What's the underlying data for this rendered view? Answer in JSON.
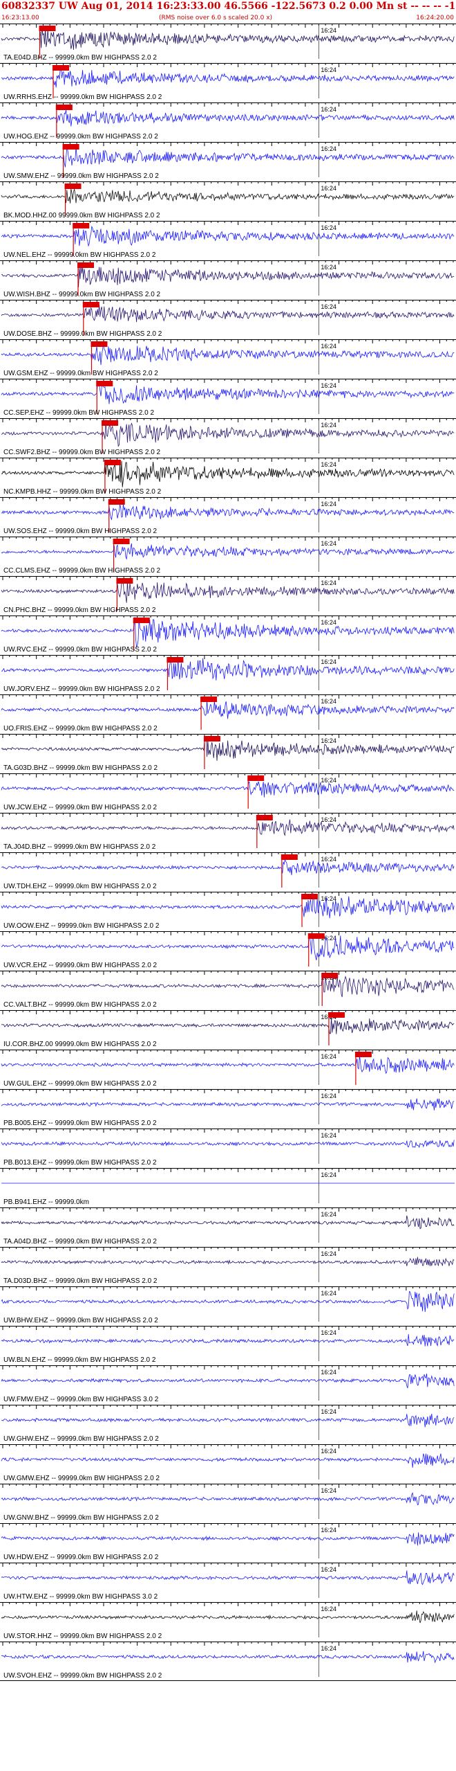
{
  "header": {
    "title": "60832337 UW Aug 01, 2014 16:23:33.00   46.5566 -122.5673  0.2 0.00 Mn st -- -- --  -1",
    "start_time": "16:23:13.00",
    "rms_note": "(RMS noise over 6.0 s scaled 20.0 x)",
    "end_time": "16:24:20.00"
  },
  "chart_data": {
    "type": "line",
    "time_start_s": 0,
    "time_end_s": 67,
    "minute_mark_label": "16:24",
    "minute_mark_s": 47,
    "traces": [
      {
        "label": "TA.E04D.BHZ -- 99999.0km BW  HIGHPASS  2.0  2",
        "color": "#1a0f5c",
        "pick_s": 5.5,
        "amp": 0.9,
        "onset_s": 5.5
      },
      {
        "label": "UW.RRHS.EHZ -- 99999.0km BW  HIGHPASS  2.0  2",
        "color": "#1a1aff",
        "pick_s": 7.5,
        "amp": 0.7,
        "onset_s": 7.5
      },
      {
        "label": "UW.HOG.EHZ -- 99999.0km BW  HIGHPASS  2.0  2",
        "color": "#1a1aff",
        "pick_s": 8.0,
        "amp": 0.6,
        "onset_s": 8.0
      },
      {
        "label": "UW.SMW.EHZ -- 99999.0km BW  HIGHPASS  2.0  2",
        "color": "#1a1aff",
        "pick_s": 9.0,
        "amp": 0.7,
        "onset_s": 9.0
      },
      {
        "label": "BK.MOD.HHZ.00 99999.0km BW  HIGHPASS  2.0  2",
        "color": "#111111",
        "pick_s": 9.3,
        "amp": 0.6,
        "onset_s": 9.3
      },
      {
        "label": "UW.NEL.EHZ -- 99999.0km BW  HIGHPASS  2.0  2",
        "color": "#1a1aff",
        "pick_s": 10.5,
        "amp": 0.8,
        "onset_s": 10.5
      },
      {
        "label": "UW.WISH.BHZ -- 99999.0km BW  HIGHPASS  2.0  2",
        "color": "#2a1570",
        "pick_s": 11.2,
        "amp": 0.9,
        "onset_s": 11.2
      },
      {
        "label": "UW.DOSE.BHZ -- 99999.0km BW  HIGHPASS  2.0  2",
        "color": "#2a1570",
        "pick_s": 12.0,
        "amp": 0.7,
        "onset_s": 12.0
      },
      {
        "label": "UW.GSM.EHZ -- 99999.0km BW  HIGHPASS  2.0  2",
        "color": "#1a1aff",
        "pick_s": 13.2,
        "amp": 0.8,
        "onset_s": 13.2
      },
      {
        "label": "CC.SEP.EHZ -- 99999.0km BW  HIGHPASS  2.0  2",
        "color": "#1a1aff",
        "pick_s": 14.0,
        "amp": 0.9,
        "onset_s": 14.0
      },
      {
        "label": "CC.SWF2.BHZ -- 99999.0km BW  HIGHPASS  2.0  2",
        "color": "#2a1570",
        "pick_s": 14.8,
        "amp": 0.9,
        "onset_s": 14.8
      },
      {
        "label": "NC.KMPB.HHZ -- 99999.0km BW  HIGHPASS  2.0  2",
        "color": "#000000",
        "pick_s": 15.2,
        "amp": 1.0,
        "onset_s": 15.2
      },
      {
        "label": "UW.SOS.EHZ -- 99999.0km BW  HIGHPASS  2.0  2",
        "color": "#1a1aff",
        "pick_s": 15.8,
        "amp": 0.6,
        "onset_s": 15.8
      },
      {
        "label": "CC.CLMS.EHZ -- 99999.0km BW  HIGHPASS  2.0  2",
        "color": "#1a1aff",
        "pick_s": 16.5,
        "amp": 0.6,
        "onset_s": 16.5
      },
      {
        "label": "CN.PHC.BHZ -- 99999.0km BW  HIGHPASS  2.0  2",
        "color": "#2a1570",
        "pick_s": 17.0,
        "amp": 0.8,
        "onset_s": 17.0
      },
      {
        "label": "UW.RVC.EHZ -- 99999.0km BW  HIGHPASS  2.0  2",
        "color": "#1a1aff",
        "pick_s": 19.5,
        "amp": 1.0,
        "onset_s": 19.5
      },
      {
        "label": "UW.JORV.EHZ -- 99999.0km BW  HIGHPASS  2.0  2",
        "color": "#1a1aff",
        "pick_s": 24.5,
        "amp": 1.0,
        "onset_s": 24.5
      },
      {
        "label": "UO.FRIS.EHZ -- 99999.0km BW  HIGHPASS  2.0  2",
        "color": "#1a1aff",
        "pick_s": 29.5,
        "amp": 0.7,
        "onset_s": 29.5
      },
      {
        "label": "TA.G03D.BHZ -- 99999.0km BW  HIGHPASS  2.0  2",
        "color": "#1a0f5c",
        "pick_s": 30.0,
        "amp": 0.8,
        "onset_s": 30.0
      },
      {
        "label": "UW.JCW.EHZ -- 99999.0km BW  HIGHPASS  2.0  2",
        "color": "#1a1aff",
        "pick_s": 36.5,
        "amp": 0.6,
        "onset_s": 36.5
      },
      {
        "label": "TA.J04D.BHZ -- 99999.0km BW  HIGHPASS  2.0  2",
        "color": "#2a1570",
        "pick_s": 37.8,
        "amp": 0.7,
        "onset_s": 37.8
      },
      {
        "label": "UW.TDH.EHZ -- 99999.0km BW  HIGHPASS  2.0  2",
        "color": "#1a1aff",
        "pick_s": 41.5,
        "amp": 0.6,
        "onset_s": 41.5
      },
      {
        "label": "UW.OOW.EHZ -- 99999.0km BW  HIGHPASS  2.0  2",
        "color": "#1a1aff",
        "pick_s": 44.5,
        "amp": 1.0,
        "onset_s": 44.5
      },
      {
        "label": "UW.VCR.EHZ -- 99999.0km BW  HIGHPASS  2.0  2",
        "color": "#1a1aff",
        "pick_s": 45.5,
        "amp": 1.0,
        "onset_s": 45.5
      },
      {
        "label": "CC.VALT.BHZ -- 99999.0km BW  HIGHPASS  2.0  2",
        "color": "#2a1570",
        "pick_s": 47.5,
        "amp": 0.9,
        "onset_s": 47.5
      },
      {
        "label": "IU.COR.BHZ.00 99999.0km BW  HIGHPASS  2.0  2",
        "color": "#1a0f5c",
        "pick_s": 48.5,
        "amp": 0.6,
        "onset_s": 48.5
      },
      {
        "label": "UW.GUL.EHZ -- 99999.0km BW  HIGHPASS  2.0  2",
        "color": "#1a1aff",
        "pick_s": 52.5,
        "amp": 0.7,
        "onset_s": 52.5
      },
      {
        "label": "PB.B005.EHZ -- 99999.0km BW  HIGHPASS  2.0  2",
        "color": "#1a1aff",
        "pick_s": null,
        "amp": 0.5,
        "onset_s": 60
      },
      {
        "label": "PB.B013.EHZ -- 99999.0km BW  HIGHPASS  2.0  2",
        "color": "#1a1aff",
        "pick_s": null,
        "amp": 0.3,
        "onset_s": 60
      },
      {
        "label": "PB.B941.EHZ -- 99999.0km",
        "color": "#1a1aff",
        "pick_s": null,
        "amp": 0.0,
        "onset_s": 60
      },
      {
        "label": "TA.A04D.BHZ -- 99999.0km BW  HIGHPASS  2.0  2",
        "color": "#1a0f5c",
        "pick_s": null,
        "amp": 0.4,
        "onset_s": 60
      },
      {
        "label": "TA.D03D.BHZ -- 99999.0km BW  HIGHPASS  2.0  2",
        "color": "#2a1570",
        "pick_s": null,
        "amp": 0.3,
        "onset_s": 60
      },
      {
        "label": "UW.BHW.EHZ -- 99999.0km BW  HIGHPASS  2.0  2",
        "color": "#1a1aff",
        "pick_s": null,
        "amp": 0.8,
        "onset_s": 60
      },
      {
        "label": "UW.BLN.EHZ -- 99999.0km BW  HIGHPASS  2.0  2",
        "color": "#1a1aff",
        "pick_s": null,
        "amp": 0.5,
        "onset_s": 60
      },
      {
        "label": "UW.FMW.EHZ -- 99999.0km BW  HIGHPASS  3.0  2",
        "color": "#1a1aff",
        "pick_s": null,
        "amp": 0.5,
        "onset_s": 60
      },
      {
        "label": "UW.GHW.EHZ -- 99999.0km BW  HIGHPASS  2.0  2",
        "color": "#1a1aff",
        "pick_s": null,
        "amp": 0.5,
        "onset_s": 60
      },
      {
        "label": "UW.GMW.EHZ -- 99999.0km BW  HIGHPASS  2.0  2",
        "color": "#1a1aff",
        "pick_s": null,
        "amp": 0.5,
        "onset_s": 60
      },
      {
        "label": "UW.GNW.BHZ -- 99999.0km BW  HIGHPASS  2.0  2",
        "color": "#1a1aff",
        "pick_s": null,
        "amp": 0.4,
        "onset_s": 60
      },
      {
        "label": "UW.HDW.EHZ -- 99999.0km BW  HIGHPASS  2.0  2",
        "color": "#1a1aff",
        "pick_s": null,
        "amp": 0.5,
        "onset_s": 60
      },
      {
        "label": "UW.HTW.EHZ -- 99999.0km BW  HIGHPASS  3.0  2",
        "color": "#1a1aff",
        "pick_s": null,
        "amp": 0.5,
        "onset_s": 60
      },
      {
        "label": "UW.STOR.HHZ -- 99999.0km BW  HIGHPASS  2.0  2",
        "color": "#111111",
        "pick_s": null,
        "amp": 0.4,
        "onset_s": 60
      },
      {
        "label": "UW.SVOH.EHZ -- 99999.0km BW  HIGHPASS  2.0  2",
        "color": "#1a1aff",
        "pick_s": null,
        "amp": 0.4,
        "onset_s": 60
      }
    ]
  },
  "colors": {
    "pick_marker": "#dd0000",
    "title_text": "#cc0000",
    "axis": "#000000"
  }
}
